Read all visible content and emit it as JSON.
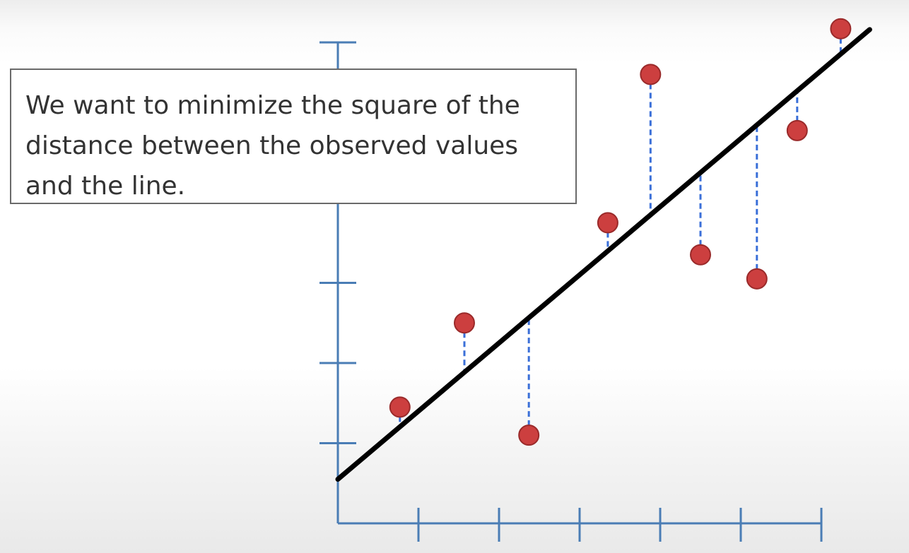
{
  "callout": {
    "text": "We want to minimize the square of the distance between the observed values and the line."
  },
  "colors": {
    "axis": "#4a7db5",
    "point_fill": "#cc3f3f",
    "point_stroke": "#9a2a2a",
    "residual": "#3a6fd8",
    "fit_line": "#000000"
  },
  "chart_data": {
    "type": "scatter",
    "title": "",
    "xlabel": "",
    "ylabel": "",
    "xlim": [
      0,
      6
    ],
    "ylim": [
      0,
      6
    ],
    "x_ticks": [
      1,
      2,
      3,
      4,
      5,
      6
    ],
    "y_ticks": [
      1,
      2,
      3,
      4,
      5,
      6
    ],
    "tick_labels_shown": false,
    "grid": false,
    "legend": "none",
    "points": [
      {
        "x": 0.77,
        "y": 1.45
      },
      {
        "x": 1.57,
        "y": 2.5
      },
      {
        "x": 2.37,
        "y": 1.1
      },
      {
        "x": 3.35,
        "y": 3.75
      },
      {
        "x": 3.88,
        "y": 5.6
      },
      {
        "x": 4.5,
        "y": 3.35
      },
      {
        "x": 5.2,
        "y": 3.05
      },
      {
        "x": 5.7,
        "y": 4.9
      },
      {
        "x": 6.24,
        "y": 6.17
      }
    ],
    "fit_line": {
      "intercept": 0.55,
      "slope": 0.85,
      "x_range": [
        0,
        6.6
      ]
    },
    "residuals": "vertical dashed segments from each point to the fit line"
  }
}
